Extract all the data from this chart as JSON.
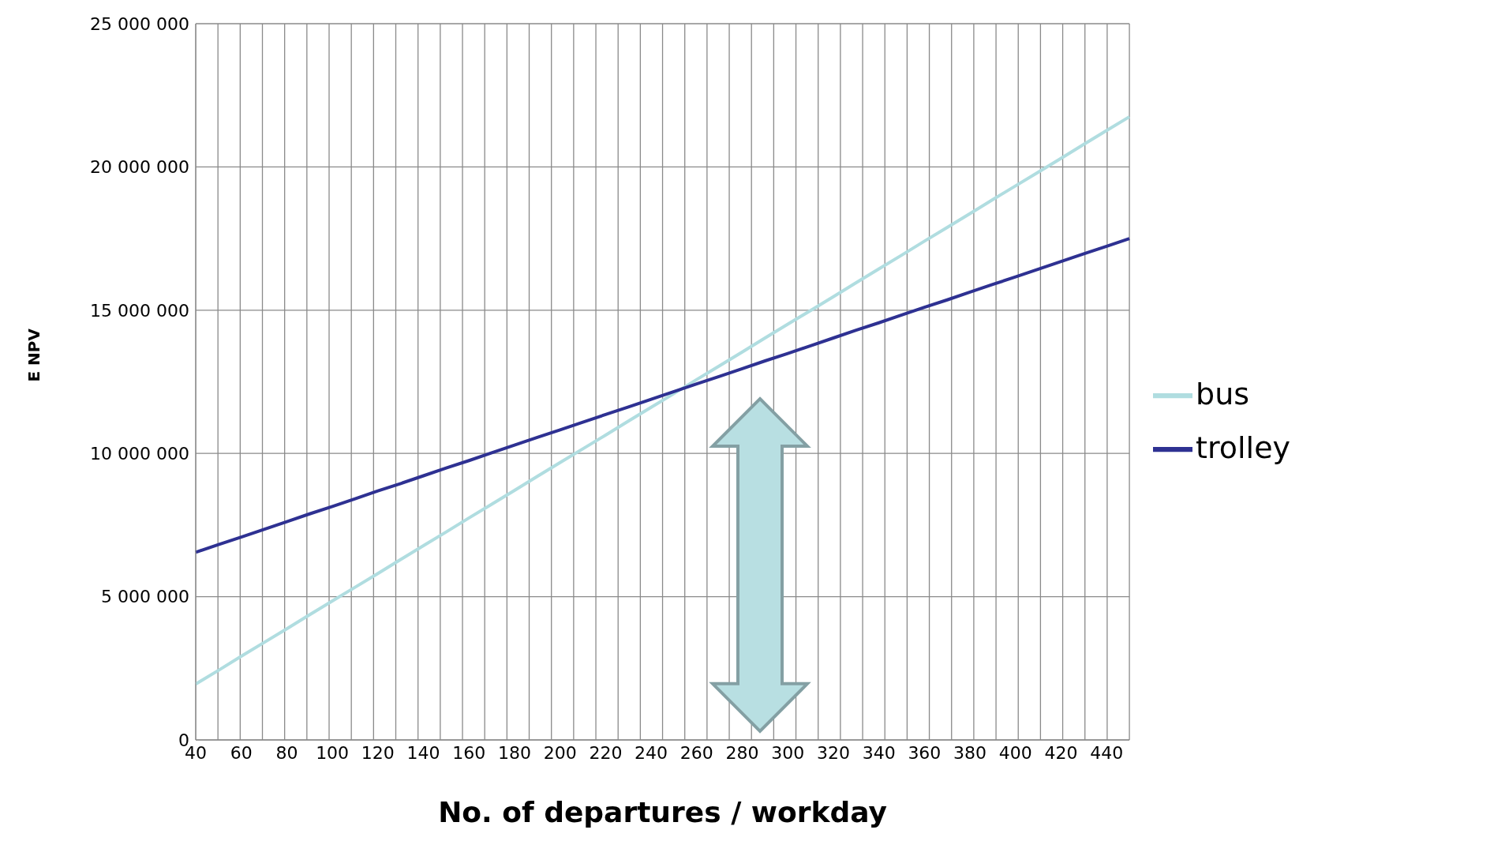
{
  "chart_data": {
    "type": "line",
    "xlabel": "No. of departures / workday",
    "ylabel": "E NPV",
    "categories": [
      "40",
      null,
      "60",
      null,
      "80",
      null,
      "100",
      null,
      "120",
      null,
      "140",
      null,
      "160",
      null,
      "180",
      null,
      "200",
      null,
      "220",
      null,
      "240",
      null,
      "260",
      null,
      "280",
      null,
      "300",
      null,
      "320",
      null,
      "340",
      null,
      "360",
      null,
      "380",
      null,
      "400",
      null,
      "420",
      null,
      "440",
      null
    ],
    "series": [
      {
        "name": "bus",
        "color": "#b0dde0",
        "values": [
          1950000,
          2430000,
          2920000,
          3400000,
          3880000,
          4370000,
          4850000,
          5330000,
          5810000,
          6300000,
          6780000,
          7260000,
          7750000,
          8230000,
          8710000,
          9200000,
          9680000,
          10160000,
          10640000,
          11130000,
          11610000,
          12090000,
          12580000,
          13060000,
          13540000,
          14030000,
          14510000,
          14990000,
          15470000,
          15960000,
          16440000,
          16920000,
          17410000,
          17890000,
          18370000,
          18860000,
          19340000,
          19820000,
          20300000,
          20790000,
          21270000,
          21750000
        ]
      },
      {
        "name": "trolley",
        "color": "#2e3192",
        "values": [
          6550000,
          6820000,
          7080000,
          7350000,
          7620000,
          7890000,
          8150000,
          8420000,
          8690000,
          8950000,
          9220000,
          9490000,
          9750000,
          10020000,
          10290000,
          10560000,
          10820000,
          11090000,
          11360000,
          11620000,
          11890000,
          12160000,
          12430000,
          12690000,
          12960000,
          13230000,
          13490000,
          13760000,
          14030000,
          14300000,
          14560000,
          14830000,
          15100000,
          15360000,
          15630000,
          15900000,
          16160000,
          16430000,
          16700000,
          16970000,
          17230000,
          17500000
        ]
      }
    ],
    "ylim": [
      0,
      25000000
    ],
    "yticks": [
      {
        "value": 0,
        "label": "0"
      },
      {
        "value": 5000000,
        "label": "5 000 000"
      },
      {
        "value": 10000000,
        "label": "10 000 000"
      },
      {
        "value": 15000000,
        "label": "15 000 000"
      },
      {
        "value": 20000000,
        "label": "20 000 000"
      },
      {
        "value": 25000000,
        "label": "25 000 000"
      }
    ],
    "grid": true,
    "legend": "right",
    "marker": "none",
    "line_style": "solid"
  }
}
